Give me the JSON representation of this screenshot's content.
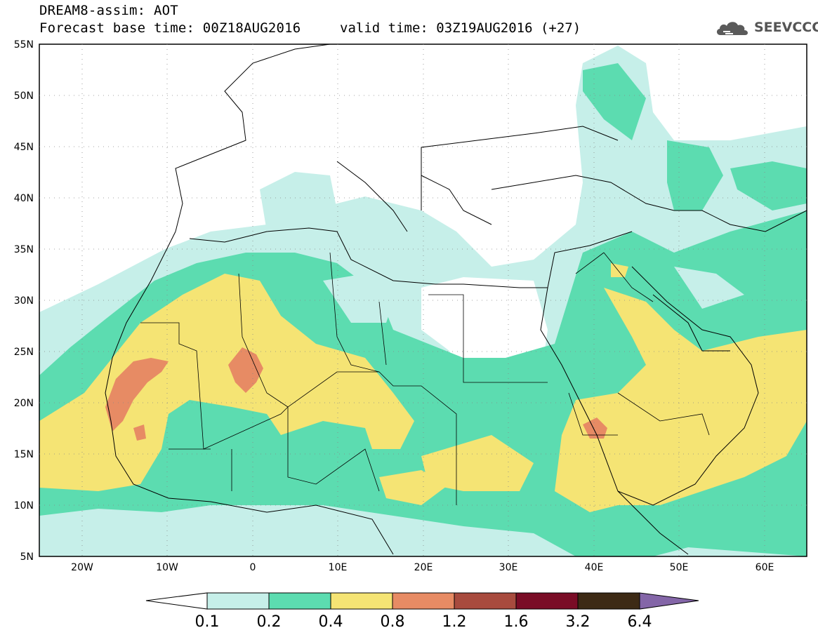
{
  "header": {
    "line1": "DREAM8-assim: AOT",
    "base_time": "Forecast base time: 00Z18AUG2016",
    "valid_time": "valid time: 03Z19AUG2016 (+27)"
  },
  "logo": {
    "text": "SEEVCCC",
    "icon": "cloud-icon"
  },
  "map": {
    "lon_range": [
      -25,
      65
    ],
    "lat_range": [
      5,
      55
    ],
    "lat_labels": [
      "55N",
      "50N",
      "45N",
      "40N",
      "35N",
      "30N",
      "25N",
      "20N",
      "15N",
      "10N",
      "5N"
    ],
    "lon_labels": [
      "20W",
      "10W",
      "0",
      "10E",
      "20E",
      "30E",
      "40E",
      "50E",
      "60E"
    ]
  },
  "colorbar": {
    "labels": [
      "0.1",
      "0.2",
      "0.4",
      "0.8",
      "1.2",
      "1.6",
      "3.2",
      "6.4"
    ],
    "colors": [
      "#ffffff",
      "#c6efe9",
      "#5cdcb0",
      "#f5e474",
      "#e78b64",
      "#a84b3e",
      "#7a0c26",
      "#3d2a15",
      "#8466a8"
    ]
  }
}
